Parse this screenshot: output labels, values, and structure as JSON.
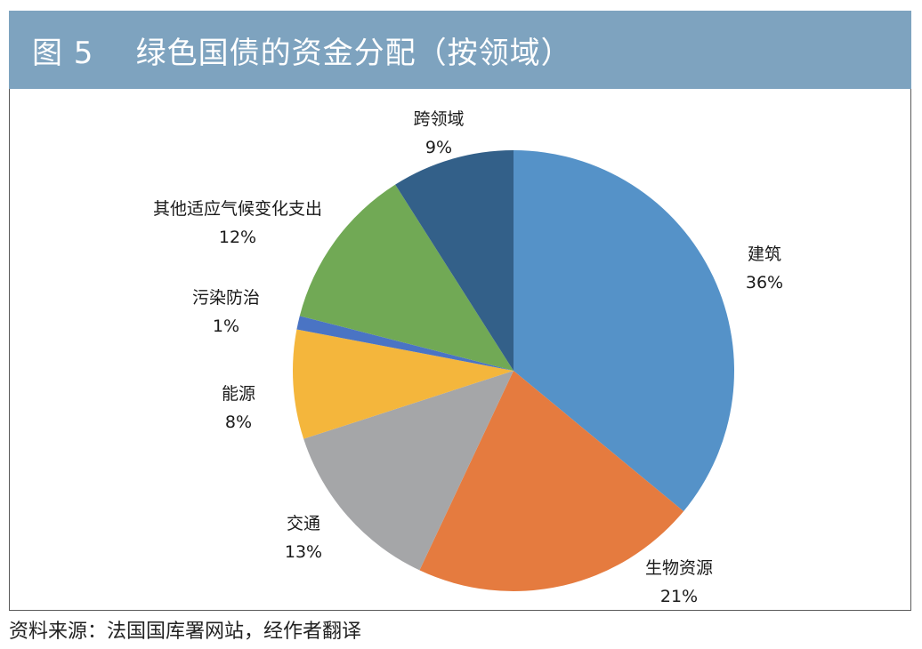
{
  "header": {
    "title": "图 5    绿色国债的资金分配（按领域）"
  },
  "chart_data": {
    "type": "pie",
    "title": "",
    "start_angle_deg": 0,
    "direction": "clockwise",
    "slices": [
      {
        "name": "建筑",
        "value": 36,
        "label": "36%",
        "color": "#5592c8"
      },
      {
        "name": "生物资源",
        "value": 21,
        "label": "21%",
        "color": "#e57b3f"
      },
      {
        "name": "交通",
        "value": 13,
        "label": "13%",
        "color": "#a5a6a8"
      },
      {
        "name": "能源",
        "value": 8,
        "label": "8%",
        "color": "#f4b63c"
      },
      {
        "name": "污染防治",
        "value": 1,
        "label": "1%",
        "color": "#4a74c4"
      },
      {
        "name": "其他适应气候变化支出",
        "value": 12,
        "label": "12%",
        "color": "#71a955"
      },
      {
        "name": "跨领域",
        "value": 9,
        "label": "9%",
        "color": "#336089"
      }
    ]
  },
  "footer": {
    "source": "资料来源：法国国库署网站，经作者翻译"
  }
}
